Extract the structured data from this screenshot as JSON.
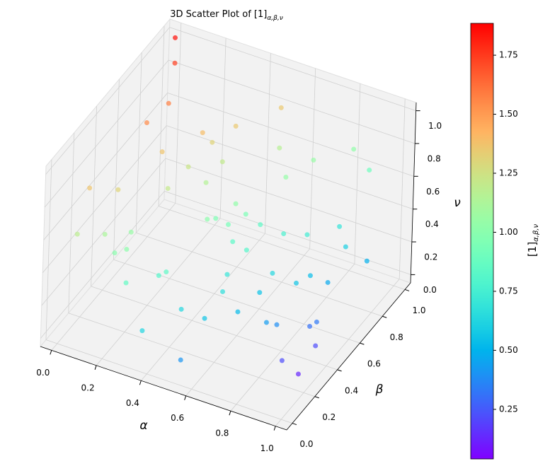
{
  "chart_data": {
    "type": "scatter3d",
    "title": "3D Scatter Plot of [1]",
    "title_subscript": "α,β,ν",
    "x_label": "α",
    "y_label": "β",
    "z_label": "ν",
    "colorbar_label": "[1]",
    "colorbar_label_subscript": "α,β,ν",
    "colormap": "rainbow",
    "clim": [
      0.04,
      1.885
    ],
    "cticks": [
      0.25,
      {
        "value": 0.5,
        "label": "0.50"
      },
      0.75,
      {
        "value": 1.0,
        "label": "1.00"
      },
      1.25,
      {
        "value": 1.5,
        "label": "1.50"
      },
      1.75
    ],
    "xlim": [
      -0.05,
      1.05
    ],
    "ylim": [
      -0.05,
      1.05
    ],
    "zlim": [
      -0.05,
      1.05
    ],
    "xticks": [
      {
        "value": 0,
        "label": "0.0"
      },
      0.2,
      0.4,
      0.6,
      0.8,
      {
        "value": 1,
        "label": "1.0"
      }
    ],
    "yticks": [
      {
        "value": 0,
        "label": "0.0"
      },
      0.2,
      0.4,
      0.6,
      0.8,
      {
        "value": 1,
        "label": "1.0"
      }
    ],
    "zticks": [
      {
        "value": 0,
        "label": "0.0"
      },
      0.2,
      0.4,
      0.6,
      0.8,
      {
        "value": 1,
        "label": "1.0"
      }
    ],
    "grid": true,
    "x": [
      0.05,
      0.1,
      0.9,
      0.5,
      0.3,
      0.7,
      0.95,
      0.2,
      0.6,
      0.8,
      0.15,
      0.4,
      0.85,
      0.25,
      0.65,
      0.35,
      0.75,
      0.05,
      0.55,
      1.0,
      0.45,
      0.9,
      0.2,
      0.6,
      0.1,
      0.7,
      0.85,
      0.3,
      0.5,
      0.95,
      0.4,
      0.15,
      0.8,
      0.05,
      0.65,
      0.25,
      0.55,
      0.9,
      0.35,
      0.75,
      0.0,
      0.45,
      0.6,
      0.2,
      1.0,
      0.1,
      0.85,
      0.3,
      0.7,
      0.5,
      0.95,
      0.15,
      0.4,
      0.8,
      0.65,
      0.9,
      0.0,
      0.05,
      0.55,
      0.95
    ],
    "y": [
      0.9,
      0.2,
      0.2,
      0.5,
      0.8,
      0.6,
      0.4,
      0.1,
      0.1,
      0.9,
      0.6,
      0.3,
      0.5,
      0.95,
      0.25,
      0.05,
      0.75,
      0.4,
      0.85,
      0.3,
      0.65,
      0.8,
      0.5,
      0.45,
      0.75,
      0.05,
      0.15,
      0.35,
      0.95,
      0.65,
      0.15,
      0.3,
      0.35,
      0.05,
      0.7,
      0.85,
      0.2,
      0.95,
      0.55,
      0.4,
      0.65,
      0.9,
      0.6,
      0.2,
      0.1,
      0.95,
      0.55,
      0.7,
      0.85,
      0.1,
      0.85,
      0.45,
      0.75,
      0.05,
      0.3,
      0.6,
      1.0,
      0.15,
      0.4,
      0.25
    ],
    "z": [
      0.95,
      0.5,
      0.1,
      0.5,
      0.2,
      0.8,
      0.05,
      0.9,
      0.3,
      0.3,
      0.7,
      0.1,
      0.6,
      0.4,
      0.9,
      0.15,
      0.1,
      0.2,
      0.95,
      0.3,
      0.25,
      0.9,
      0.05,
      0.65,
      0.85,
      0.55,
      0.35,
      0.75,
      0.6,
      0.45,
      0.45,
      0.35,
      0.15,
      0.6,
      0.35,
      0.6,
      0.8,
      0.65,
      0.95,
      0.4,
      0.1,
      0.15,
      0.05,
      0.25,
      0.7,
      0.3,
      0.0,
      0.5,
      0.7,
      0.0,
      0.2,
      1.0,
      0.85,
      0.85,
      0.2,
      0.25,
      1.0,
      0.8,
      0.3,
      0.0
    ],
    "c": [
      1.74,
      1.12,
      0.22,
      0.93,
      0.96,
      1.04,
      0.22,
      1.31,
      0.56,
      0.69,
      1.37,
      0.63,
      0.74,
      1.2,
      1.03,
      0.62,
      0.53,
      1.0,
      1.35,
      0.33,
      0.83,
      1.03,
      0.81,
      0.95,
      1.58,
      0.66,
      0.43,
      1.21,
      1.16,
      0.6,
      0.84,
      1.01,
      0.39,
      1.18,
      0.77,
      1.31,
      1.01,
      0.9,
      1.39,
      0.63,
      1.05,
      0.84,
      0.55,
      0.86,
      0.56,
      1.23,
      0.31,
      1.15,
      1.05,
      0.41,
      0.49,
      1.55,
      1.35,
      0.81,
      0.52,
      0.47,
      1.85,
      1.37,
      0.7,
      0.13
    ]
  }
}
